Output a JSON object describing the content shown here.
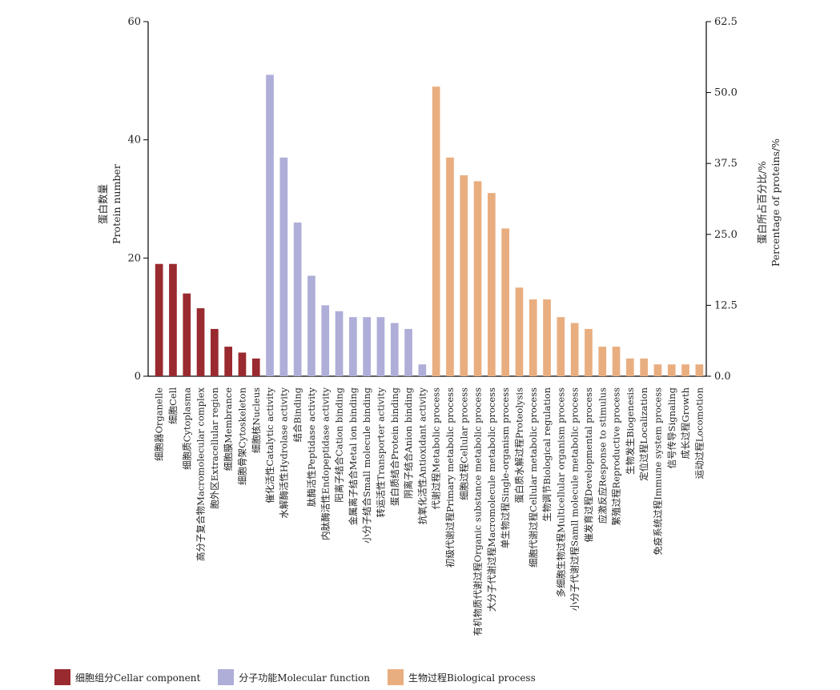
{
  "chart_data": {
    "type": "bar",
    "title": "",
    "xlabel": "",
    "ylabel": [
      "蛋白数量",
      "Protein number"
    ],
    "y2label": [
      "蛋白所占百分比/%",
      "Percentage of proteins/%"
    ],
    "ylim": [
      0,
      60
    ],
    "y2lim": [
      0,
      62.5
    ],
    "yticks": [
      "0",
      "20",
      "40",
      "60"
    ],
    "y2ticks": [
      "0.0",
      "12.5",
      "25.0",
      "37.5",
      "50.0",
      "62.5"
    ],
    "grid": false,
    "legend": "bottom-left",
    "series": [
      {
        "name": "细胞组分Cellar component",
        "color": "#992a2f",
        "categories": [
          "细胞器Organelle",
          "细胞Cell",
          "细胞质Cytoplasma",
          "高分子复合物Macromolecular complex",
          "胞外区Extracellular region",
          "细胞膜Membrance",
          "细胞骨架Cytoskeleton",
          "细胞核Nucleus"
        ],
        "values": [
          19,
          19,
          14,
          11.5,
          8,
          5,
          4,
          3
        ]
      },
      {
        "name": "分子功能Molecular function",
        "color": "#aeaed8",
        "categories": [
          "催化活性Catalytic activity",
          "水解酶活性Hydrolase activity",
          "结合Binding",
          "肽酶活性Peptidase activity",
          "内肽酶活性Endopeptidase activity",
          "阳离子结合Cation binding",
          "金属离子结合Metal ion binding",
          "小分子结合Small molecule binding",
          "转运活性Transporter activity",
          "蛋白质结合Protein binding",
          "阴离子结合Anion binding",
          "抗氧化活性Antioxidant activity"
        ],
        "values": [
          51,
          37,
          26,
          17,
          12,
          11,
          10,
          10,
          10,
          9,
          8,
          2
        ]
      },
      {
        "name": "生物过程Biological process",
        "color": "#e9ae80",
        "categories": [
          "代谢过程Metabolic process",
          "初级代谢过程Primary metabolic process",
          "细胞过程Cellular process",
          "有机物质代谢过程Organic substance metabolic process",
          "大分子代谢过程Macromolecule metabolic process",
          "单生物过程Single-organism process",
          "蛋白质水解过程Proteolysis",
          "细胞代谢过程Cellular metabolic process",
          "生物调节Biological regulation",
          "多细胞生物过程Multicellular organism process",
          "小分子代谢过程Samll molecule metabolic process",
          "催发育过程Developmental process",
          "应激反应Response to stimulus",
          "繁殖过程Reproductive process",
          "生物发生Biogenesis",
          "定位过程Localization",
          "免疫系统过程Immune system process",
          "信号传导Signaling",
          "成长过程Growth",
          "运动过程Locomotion"
        ],
        "values": [
          49,
          37,
          34,
          33,
          31,
          25,
          15,
          13,
          13,
          10,
          9,
          8,
          5,
          5,
          3,
          3,
          2,
          2,
          2,
          2
        ]
      }
    ]
  }
}
